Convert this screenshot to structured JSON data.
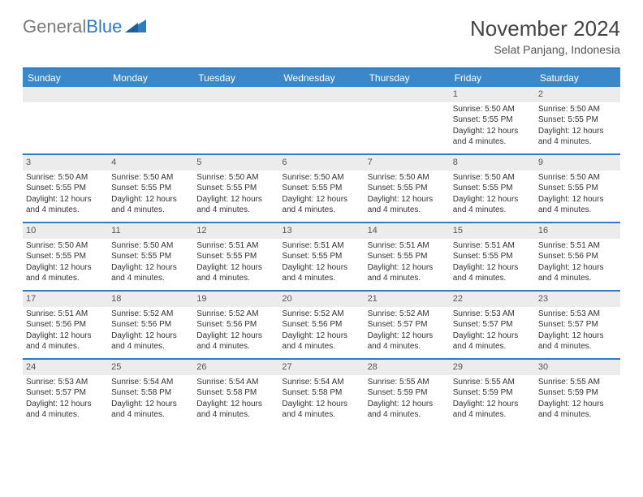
{
  "logo": {
    "text1": "General",
    "text2": "Blue"
  },
  "title": "November 2024",
  "subtitle": "Selat Panjang, Indonesia",
  "colors": {
    "header_bg": "#3b87c8",
    "border": "#2f7ac0",
    "daynum_bg": "#ececec",
    "text": "#333333",
    "logo_gray": "#7a7a7a"
  },
  "day_headers": [
    "Sunday",
    "Monday",
    "Tuesday",
    "Wednesday",
    "Thursday",
    "Friday",
    "Saturday"
  ],
  "weeks": [
    [
      {
        "empty": true
      },
      {
        "empty": true
      },
      {
        "empty": true
      },
      {
        "empty": true
      },
      {
        "empty": true
      },
      {
        "n": "1",
        "sunrise": "Sunrise: 5:50 AM",
        "sunset": "Sunset: 5:55 PM",
        "daylight": "Daylight: 12 hours and 4 minutes."
      },
      {
        "n": "2",
        "sunrise": "Sunrise: 5:50 AM",
        "sunset": "Sunset: 5:55 PM",
        "daylight": "Daylight: 12 hours and 4 minutes."
      }
    ],
    [
      {
        "n": "3",
        "sunrise": "Sunrise: 5:50 AM",
        "sunset": "Sunset: 5:55 PM",
        "daylight": "Daylight: 12 hours and 4 minutes."
      },
      {
        "n": "4",
        "sunrise": "Sunrise: 5:50 AM",
        "sunset": "Sunset: 5:55 PM",
        "daylight": "Daylight: 12 hours and 4 minutes."
      },
      {
        "n": "5",
        "sunrise": "Sunrise: 5:50 AM",
        "sunset": "Sunset: 5:55 PM",
        "daylight": "Daylight: 12 hours and 4 minutes."
      },
      {
        "n": "6",
        "sunrise": "Sunrise: 5:50 AM",
        "sunset": "Sunset: 5:55 PM",
        "daylight": "Daylight: 12 hours and 4 minutes."
      },
      {
        "n": "7",
        "sunrise": "Sunrise: 5:50 AM",
        "sunset": "Sunset: 5:55 PM",
        "daylight": "Daylight: 12 hours and 4 minutes."
      },
      {
        "n": "8",
        "sunrise": "Sunrise: 5:50 AM",
        "sunset": "Sunset: 5:55 PM",
        "daylight": "Daylight: 12 hours and 4 minutes."
      },
      {
        "n": "9",
        "sunrise": "Sunrise: 5:50 AM",
        "sunset": "Sunset: 5:55 PM",
        "daylight": "Daylight: 12 hours and 4 minutes."
      }
    ],
    [
      {
        "n": "10",
        "sunrise": "Sunrise: 5:50 AM",
        "sunset": "Sunset: 5:55 PM",
        "daylight": "Daylight: 12 hours and 4 minutes."
      },
      {
        "n": "11",
        "sunrise": "Sunrise: 5:50 AM",
        "sunset": "Sunset: 5:55 PM",
        "daylight": "Daylight: 12 hours and 4 minutes."
      },
      {
        "n": "12",
        "sunrise": "Sunrise: 5:51 AM",
        "sunset": "Sunset: 5:55 PM",
        "daylight": "Daylight: 12 hours and 4 minutes."
      },
      {
        "n": "13",
        "sunrise": "Sunrise: 5:51 AM",
        "sunset": "Sunset: 5:55 PM",
        "daylight": "Daylight: 12 hours and 4 minutes."
      },
      {
        "n": "14",
        "sunrise": "Sunrise: 5:51 AM",
        "sunset": "Sunset: 5:55 PM",
        "daylight": "Daylight: 12 hours and 4 minutes."
      },
      {
        "n": "15",
        "sunrise": "Sunrise: 5:51 AM",
        "sunset": "Sunset: 5:55 PM",
        "daylight": "Daylight: 12 hours and 4 minutes."
      },
      {
        "n": "16",
        "sunrise": "Sunrise: 5:51 AM",
        "sunset": "Sunset: 5:56 PM",
        "daylight": "Daylight: 12 hours and 4 minutes."
      }
    ],
    [
      {
        "n": "17",
        "sunrise": "Sunrise: 5:51 AM",
        "sunset": "Sunset: 5:56 PM",
        "daylight": "Daylight: 12 hours and 4 minutes."
      },
      {
        "n": "18",
        "sunrise": "Sunrise: 5:52 AM",
        "sunset": "Sunset: 5:56 PM",
        "daylight": "Daylight: 12 hours and 4 minutes."
      },
      {
        "n": "19",
        "sunrise": "Sunrise: 5:52 AM",
        "sunset": "Sunset: 5:56 PM",
        "daylight": "Daylight: 12 hours and 4 minutes."
      },
      {
        "n": "20",
        "sunrise": "Sunrise: 5:52 AM",
        "sunset": "Sunset: 5:56 PM",
        "daylight": "Daylight: 12 hours and 4 minutes."
      },
      {
        "n": "21",
        "sunrise": "Sunrise: 5:52 AM",
        "sunset": "Sunset: 5:57 PM",
        "daylight": "Daylight: 12 hours and 4 minutes."
      },
      {
        "n": "22",
        "sunrise": "Sunrise: 5:53 AM",
        "sunset": "Sunset: 5:57 PM",
        "daylight": "Daylight: 12 hours and 4 minutes."
      },
      {
        "n": "23",
        "sunrise": "Sunrise: 5:53 AM",
        "sunset": "Sunset: 5:57 PM",
        "daylight": "Daylight: 12 hours and 4 minutes."
      }
    ],
    [
      {
        "n": "24",
        "sunrise": "Sunrise: 5:53 AM",
        "sunset": "Sunset: 5:57 PM",
        "daylight": "Daylight: 12 hours and 4 minutes."
      },
      {
        "n": "25",
        "sunrise": "Sunrise: 5:54 AM",
        "sunset": "Sunset: 5:58 PM",
        "daylight": "Daylight: 12 hours and 4 minutes."
      },
      {
        "n": "26",
        "sunrise": "Sunrise: 5:54 AM",
        "sunset": "Sunset: 5:58 PM",
        "daylight": "Daylight: 12 hours and 4 minutes."
      },
      {
        "n": "27",
        "sunrise": "Sunrise: 5:54 AM",
        "sunset": "Sunset: 5:58 PM",
        "daylight": "Daylight: 12 hours and 4 minutes."
      },
      {
        "n": "28",
        "sunrise": "Sunrise: 5:55 AM",
        "sunset": "Sunset: 5:59 PM",
        "daylight": "Daylight: 12 hours and 4 minutes."
      },
      {
        "n": "29",
        "sunrise": "Sunrise: 5:55 AM",
        "sunset": "Sunset: 5:59 PM",
        "daylight": "Daylight: 12 hours and 4 minutes."
      },
      {
        "n": "30",
        "sunrise": "Sunrise: 5:55 AM",
        "sunset": "Sunset: 5:59 PM",
        "daylight": "Daylight: 12 hours and 4 minutes."
      }
    ]
  ]
}
